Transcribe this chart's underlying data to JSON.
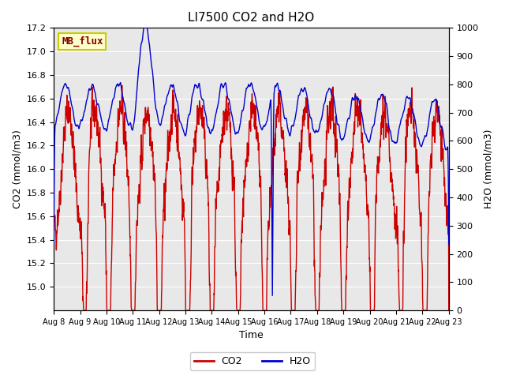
{
  "title": "LI7500 CO2 and H2O",
  "xlabel": "Time",
  "ylabel_left": "CO2 (mmol/m3)",
  "ylabel_right": "H2O (mmol/m3)",
  "x_tick_labels": [
    "Aug 8",
    "Aug 9",
    "Aug 10",
    "Aug 11",
    "Aug 12",
    "Aug 13",
    "Aug 14",
    "Aug 15",
    "Aug 16",
    "Aug 17",
    "Aug 18",
    "Aug 19",
    "Aug 20",
    "Aug 21",
    "Aug 22",
    "Aug 23"
  ],
  "ylim_left": [
    14.8,
    17.2
  ],
  "ylim_right": [
    0,
    1000
  ],
  "yticks_left": [
    15.0,
    15.2,
    15.4,
    15.6,
    15.8,
    16.0,
    16.2,
    16.4,
    16.6,
    16.8,
    17.0,
    17.2
  ],
  "yticks_right": [
    0,
    100,
    200,
    300,
    400,
    500,
    600,
    700,
    800,
    900,
    1000
  ],
  "co2_color": "#cc0000",
  "h2o_color": "#0000cc",
  "background_color": "#ffffff",
  "plot_bg_color": "#e8e8e8",
  "grid_color": "#ffffff",
  "annotation_text": "MB_flux",
  "annotation_bg": "#ffffcc",
  "annotation_border": "#cccc00",
  "annotation_text_color": "#880000",
  "legend_co2": "CO2",
  "legend_h2o": "H2O",
  "num_days": 15,
  "seed": 42
}
